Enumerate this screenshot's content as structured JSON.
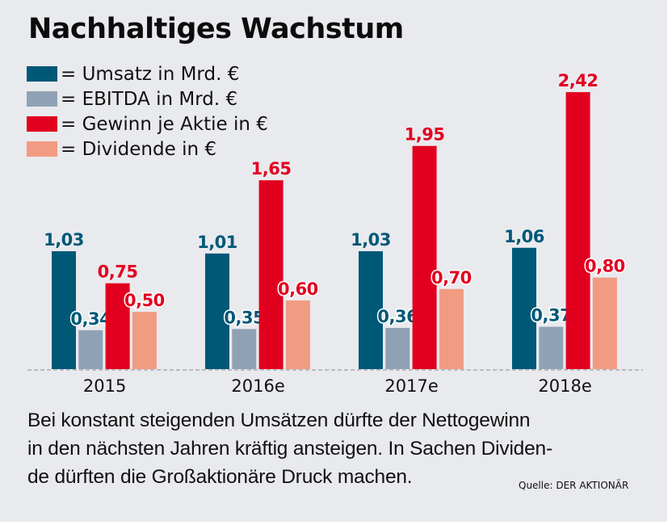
{
  "title": "Nachhaltiges Wachstum",
  "legend": [
    {
      "label": "= Umsatz in Mrd. €",
      "color": "#005877"
    },
    {
      "label": "= EBITDA in Mrd. €",
      "color": "#8fa2b5"
    },
    {
      "label": "= Gewinn je Aktie in €",
      "color": "#e2001f"
    },
    {
      "label": "= Dividende in €",
      "color": "#f19b82"
    }
  ],
  "caption": "Bei konstant steigenden Umsätzen dürfte der Nettogewinn in den nächsten Jahren kräftig ansteigen. In Sachen Dividen-de dürften die Großaktionäre Druck machen.",
  "caption_lines": [
    "Bei konstant steigenden Umsätzen dürfte der Nettogewinn",
    "in den nächsten Jahren kräftig ansteigen. In Sachen Dividen-",
    "de dürften die Großaktionäre Druck machen."
  ],
  "source": "Quelle: DER AKTIONÄR",
  "chart_data": {
    "type": "bar",
    "title": "Nachhaltiges Wachstum",
    "xlabel": "",
    "ylabel": "",
    "categories": [
      "2015",
      "2016e",
      "2017e",
      "2018e"
    ],
    "series": [
      {
        "name": "Umsatz in Mrd. €",
        "color": "#005877",
        "label_color": "#005877",
        "values": [
          1.03,
          1.01,
          1.03,
          1.06
        ],
        "labels": [
          "1,03",
          "1,01",
          "1,03",
          "1,06"
        ]
      },
      {
        "name": "EBITDA in Mrd. €",
        "color": "#8fa2b5",
        "label_color": "#005877",
        "values": [
          0.34,
          0.35,
          0.36,
          0.37
        ],
        "labels": [
          "0,34",
          "0,35",
          "0,36",
          "0,37"
        ]
      },
      {
        "name": "Gewinn je Aktie in €",
        "color": "#e2001f",
        "label_color": "#e2001f",
        "values": [
          0.75,
          1.65,
          1.95,
          2.42
        ],
        "labels": [
          "0,75",
          "1,65",
          "1,95",
          "2,42"
        ]
      },
      {
        "name": "Dividende in €",
        "color": "#f19b82",
        "label_color": "#e2001f",
        "values": [
          0.5,
          0.6,
          0.7,
          0.8
        ],
        "labels": [
          "0,50",
          "0,60",
          "0,70",
          "0,80"
        ]
      }
    ],
    "ylim": [
      0,
      2.5
    ],
    "grid": false,
    "baseline": "dashed",
    "legend_position": "top-left"
  }
}
